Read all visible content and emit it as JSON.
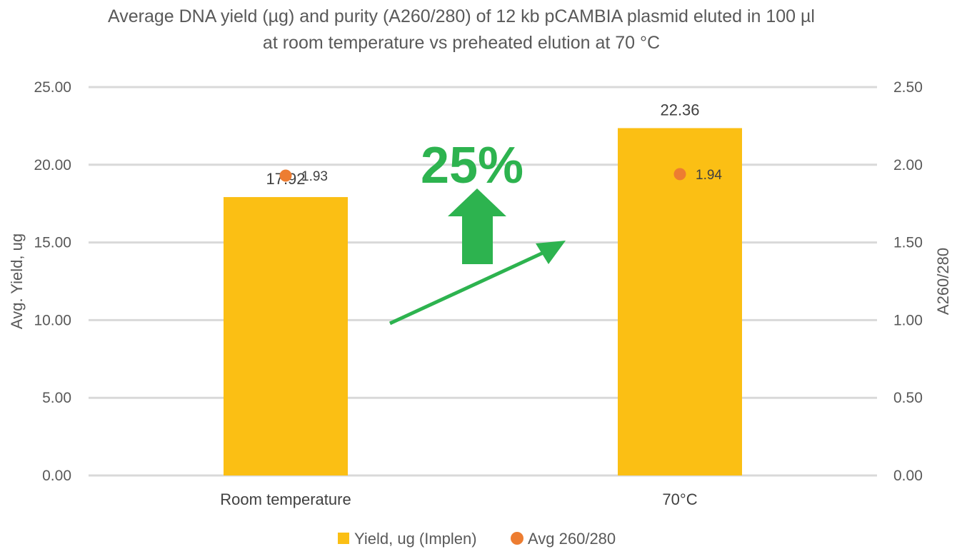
{
  "colors": {
    "bar": "#FBBF14",
    "point": "#ED7D31",
    "grid": "#D9D9D9",
    "annotation": "#2DB34F"
  },
  "chart_data": {
    "type": "bar",
    "title_lines": [
      "Average DNA yield (µg) and purity (A260/280) of 12 kb pCAMBIA plasmid eluted in 100 µl",
      "at room temperature vs preheated elution at 70 °C"
    ],
    "categories": [
      "Room temperature",
      "70°C"
    ],
    "series": [
      {
        "name": "Yield, ug (Implen)",
        "type": "bar",
        "axis": "left",
        "values": [
          17.92,
          22.36
        ],
        "labels": [
          "17.92",
          "22.36"
        ]
      },
      {
        "name": "Avg 260/280",
        "type": "scatter",
        "axis": "right",
        "values": [
          1.93,
          1.94
        ],
        "labels": [
          "1.93",
          "1.94"
        ]
      }
    ],
    "ylabel": "Avg. Yield, ug",
    "y2label": "A260/280",
    "ylim": [
      0,
      25
    ],
    "y2lim": [
      0,
      2.5
    ],
    "yticks": [
      "0.00",
      "5.00",
      "10.00",
      "15.00",
      "20.00",
      "25.00"
    ],
    "y2ticks": [
      "0.00",
      "0.50",
      "1.00",
      "1.50",
      "2.00",
      "2.50"
    ],
    "grid": true,
    "legend_position": "bottom",
    "annotation": {
      "text": "25%",
      "icons": [
        "up-arrow-icon",
        "diagonal-arrow-icon"
      ]
    }
  }
}
